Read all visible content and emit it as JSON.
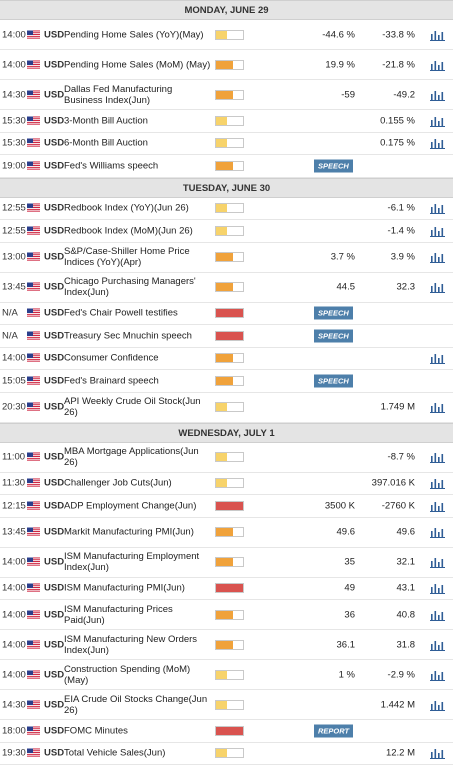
{
  "colors": {
    "high": "#d9534f",
    "medium": "#f0a23b",
    "low": "#f7d36b",
    "link_icon": "#2f5d96",
    "badge": "#4d7faa"
  },
  "icons": {
    "flag": "us-flag-icon",
    "chart": "bar-chart-icon"
  },
  "days": [
    {
      "label": "MONDAY, JUNE 29",
      "events": [
        {
          "time": "14:00",
          "currency": "USD",
          "name": "Pending Home Sales (YoY)(May)",
          "impact": "low",
          "actual": "-44.6 %",
          "forecast": "-33.8 %",
          "chart": true
        },
        {
          "time": "14:00",
          "currency": "USD",
          "name": "Pending Home Sales (MoM) (May)",
          "impact": "medium",
          "actual": "19.9 %",
          "forecast": "-21.8 %",
          "chart": true
        },
        {
          "time": "14:30",
          "currency": "USD",
          "name": "Dallas Fed Manufacturing Business Index(Jun)",
          "impact": "medium",
          "actual": "-59",
          "forecast": "-49.2",
          "chart": true
        },
        {
          "time": "15:30",
          "currency": "USD",
          "name": "3-Month Bill Auction",
          "impact": "low",
          "actual": "",
          "forecast": "0.155 %",
          "chart": true
        },
        {
          "time": "15:30",
          "currency": "USD",
          "name": "6-Month Bill Auction",
          "impact": "low",
          "actual": "",
          "forecast": "0.175 %",
          "chart": true
        },
        {
          "time": "19:00",
          "currency": "USD",
          "name": "Fed's Williams speech",
          "impact": "medium",
          "badge": "SPEECH",
          "actual": "",
          "forecast": "",
          "chart": false
        }
      ]
    },
    {
      "label": "TUESDAY, JUNE 30",
      "events": [
        {
          "time": "12:55",
          "currency": "USD",
          "name": "Redbook Index (YoY)(Jun 26)",
          "impact": "low",
          "actual": "",
          "forecast": "-6.1 %",
          "chart": true
        },
        {
          "time": "12:55",
          "currency": "USD",
          "name": "Redbook Index (MoM)(Jun 26)",
          "impact": "low",
          "actual": "",
          "forecast": "-1.4 %",
          "chart": true
        },
        {
          "time": "13:00",
          "currency": "USD",
          "name": "S&P/Case-Shiller Home Price Indices (YoY)(Apr)",
          "impact": "medium",
          "actual": "3.7 %",
          "forecast": "3.9 %",
          "chart": true
        },
        {
          "time": "13:45",
          "currency": "USD",
          "name": "Chicago Purchasing Managers' Index(Jun)",
          "impact": "medium",
          "actual": "44.5",
          "forecast": "32.3",
          "chart": true
        },
        {
          "time": "N/A",
          "currency": "USD",
          "name": "Fed's Chair Powell testifies",
          "impact": "high",
          "badge": "SPEECH",
          "actual": "",
          "forecast": "",
          "chart": false
        },
        {
          "time": "N/A",
          "currency": "USD",
          "name": "Treasury Sec Mnuchin speech",
          "impact": "high",
          "badge": "SPEECH",
          "actual": "",
          "forecast": "",
          "chart": false
        },
        {
          "time": "14:00",
          "currency": "USD",
          "name": "Consumer Confidence",
          "impact": "medium",
          "actual": "",
          "forecast": "",
          "chart": true
        },
        {
          "time": "15:05",
          "currency": "USD",
          "name": "Fed's Brainard speech",
          "impact": "medium",
          "badge": "SPEECH",
          "actual": "",
          "forecast": "",
          "chart": false
        },
        {
          "time": "20:30",
          "currency": "USD",
          "name": "API Weekly Crude Oil Stock(Jun 26)",
          "impact": "low",
          "actual": "",
          "forecast": "1.749 M",
          "chart": true
        }
      ]
    },
    {
      "label": "WEDNESDAY, JULY 1",
      "events": [
        {
          "time": "11:00",
          "currency": "USD",
          "name": "MBA Mortgage Applications(Jun 26)",
          "impact": "low",
          "actual": "",
          "forecast": "-8.7 %",
          "chart": true
        },
        {
          "time": "11:30",
          "currency": "USD",
          "name": "Challenger Job Cuts(Jun)",
          "impact": "low",
          "actual": "",
          "forecast": "397.016 K",
          "chart": true
        },
        {
          "time": "12:15",
          "currency": "USD",
          "name": "ADP Employment Change(Jun)",
          "impact": "high",
          "actual": "3500 K",
          "forecast": "-2760 K",
          "chart": true
        },
        {
          "time": "13:45",
          "currency": "USD",
          "name": "Markit Manufacturing PMI(Jun)",
          "impact": "medium",
          "actual": "49.6",
          "forecast": "49.6",
          "chart": true
        },
        {
          "time": "14:00",
          "currency": "USD",
          "name": "ISM Manufacturing Employment Index(Jun)",
          "impact": "medium",
          "actual": "35",
          "forecast": "32.1",
          "chart": true
        },
        {
          "time": "14:00",
          "currency": "USD",
          "name": "ISM Manufacturing PMI(Jun)",
          "impact": "high",
          "actual": "49",
          "forecast": "43.1",
          "chart": true
        },
        {
          "time": "14:00",
          "currency": "USD",
          "name": "ISM Manufacturing Prices Paid(Jun)",
          "impact": "medium",
          "actual": "36",
          "forecast": "40.8",
          "chart": true
        },
        {
          "time": "14:00",
          "currency": "USD",
          "name": "ISM Manufacturing New Orders Index(Jun)",
          "impact": "medium",
          "actual": "36.1",
          "forecast": "31.8",
          "chart": true
        },
        {
          "time": "14:00",
          "currency": "USD",
          "name": "Construction Spending (MoM) (May)",
          "impact": "low",
          "actual": "1 %",
          "forecast": "-2.9 %",
          "chart": true
        },
        {
          "time": "14:30",
          "currency": "USD",
          "name": "EIA Crude Oil Stocks Change(Jun 26)",
          "impact": "low",
          "actual": "",
          "forecast": "1.442 M",
          "chart": true
        },
        {
          "time": "18:00",
          "currency": "USD",
          "name": "FOMC Minutes",
          "impact": "high",
          "badge": "REPORT",
          "actual": "",
          "forecast": "",
          "chart": false
        },
        {
          "time": "19:30",
          "currency": "USD",
          "name": "Total Vehicle Sales(Jun)",
          "impact": "low",
          "actual": "",
          "forecast": "12.2 M",
          "chart": true
        }
      ]
    }
  ]
}
